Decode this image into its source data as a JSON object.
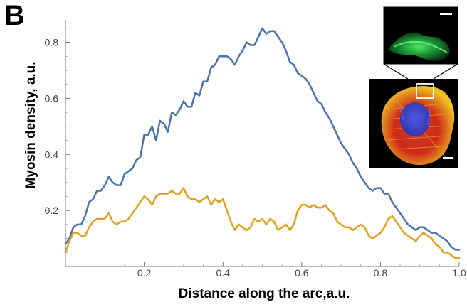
{
  "figure": {
    "panel_letter": "B"
  },
  "chart_data": {
    "type": "line",
    "xlabel": "Distance along the arc,a.u.",
    "ylabel": "Myosin density, a.u.",
    "xlim": [
      0,
      1.0
    ],
    "ylim": [
      0,
      0.88
    ],
    "xticks": [
      0.2,
      0.4,
      0.6,
      0.8,
      1.0
    ],
    "xtick_labels": [
      "0.2",
      "0.4",
      "0.6",
      "0.8",
      "1.0"
    ],
    "yticks": [
      0.2,
      0.4,
      0.6,
      0.8
    ],
    "ytick_labels": [
      "0.2",
      "0.4",
      "0.6",
      "0.8"
    ],
    "grid": false,
    "colors": {
      "blue_series": "#4a72b0",
      "orange_series": "#e0a020"
    },
    "series": [
      {
        "color": "#4a72b0",
        "x": [
          0.0,
          0.01,
          0.02,
          0.03,
          0.04,
          0.05,
          0.06,
          0.07,
          0.08,
          0.09,
          0.1,
          0.11,
          0.12,
          0.13,
          0.14,
          0.15,
          0.16,
          0.17,
          0.18,
          0.19,
          0.2,
          0.21,
          0.22,
          0.23,
          0.24,
          0.25,
          0.26,
          0.27,
          0.28,
          0.29,
          0.3,
          0.31,
          0.32,
          0.33,
          0.34,
          0.35,
          0.36,
          0.37,
          0.38,
          0.39,
          0.4,
          0.41,
          0.42,
          0.43,
          0.44,
          0.45,
          0.46,
          0.47,
          0.48,
          0.49,
          0.5,
          0.51,
          0.52,
          0.53,
          0.54,
          0.55,
          0.56,
          0.57,
          0.58,
          0.59,
          0.6,
          0.61,
          0.62,
          0.63,
          0.64,
          0.65,
          0.66,
          0.67,
          0.68,
          0.69,
          0.7,
          0.71,
          0.72,
          0.73,
          0.74,
          0.75,
          0.76,
          0.77,
          0.78,
          0.79,
          0.8,
          0.81,
          0.82,
          0.83,
          0.84,
          0.85,
          0.86,
          0.87,
          0.88,
          0.89,
          0.9,
          0.91,
          0.92,
          0.93,
          0.94,
          0.95,
          0.96,
          0.97,
          0.98,
          0.99,
          1.0
        ],
        "values": [
          0.08,
          0.1,
          0.14,
          0.15,
          0.15,
          0.18,
          0.23,
          0.24,
          0.27,
          0.27,
          0.29,
          0.32,
          0.3,
          0.29,
          0.29,
          0.33,
          0.34,
          0.35,
          0.38,
          0.39,
          0.47,
          0.47,
          0.5,
          0.45,
          0.52,
          0.51,
          0.48,
          0.55,
          0.54,
          0.56,
          0.59,
          0.57,
          0.57,
          0.62,
          0.61,
          0.66,
          0.66,
          0.71,
          0.72,
          0.75,
          0.75,
          0.75,
          0.74,
          0.72,
          0.75,
          0.77,
          0.8,
          0.79,
          0.79,
          0.82,
          0.85,
          0.83,
          0.84,
          0.84,
          0.82,
          0.8,
          0.77,
          0.73,
          0.72,
          0.69,
          0.68,
          0.67,
          0.65,
          0.62,
          0.59,
          0.58,
          0.55,
          0.53,
          0.5,
          0.47,
          0.44,
          0.42,
          0.4,
          0.37,
          0.35,
          0.32,
          0.3,
          0.28,
          0.27,
          0.28,
          0.28,
          0.26,
          0.26,
          0.23,
          0.21,
          0.19,
          0.17,
          0.15,
          0.14,
          0.13,
          0.14,
          0.14,
          0.13,
          0.12,
          0.12,
          0.11,
          0.1,
          0.09,
          0.07,
          0.06,
          0.06
        ]
      },
      {
        "color": "#e0a020",
        "x": [
          0.0,
          0.01,
          0.02,
          0.03,
          0.04,
          0.05,
          0.06,
          0.07,
          0.08,
          0.09,
          0.1,
          0.11,
          0.12,
          0.13,
          0.14,
          0.15,
          0.16,
          0.17,
          0.18,
          0.19,
          0.2,
          0.21,
          0.22,
          0.23,
          0.24,
          0.25,
          0.26,
          0.27,
          0.28,
          0.29,
          0.3,
          0.31,
          0.32,
          0.33,
          0.34,
          0.35,
          0.36,
          0.37,
          0.38,
          0.39,
          0.4,
          0.41,
          0.42,
          0.43,
          0.44,
          0.45,
          0.46,
          0.47,
          0.48,
          0.49,
          0.5,
          0.51,
          0.52,
          0.53,
          0.54,
          0.55,
          0.56,
          0.57,
          0.58,
          0.59,
          0.6,
          0.61,
          0.62,
          0.63,
          0.64,
          0.65,
          0.66,
          0.67,
          0.68,
          0.69,
          0.7,
          0.71,
          0.72,
          0.73,
          0.74,
          0.75,
          0.76,
          0.77,
          0.78,
          0.79,
          0.8,
          0.81,
          0.82,
          0.83,
          0.84,
          0.85,
          0.86,
          0.87,
          0.88,
          0.89,
          0.9,
          0.91,
          0.92,
          0.93,
          0.94,
          0.95,
          0.96,
          0.97,
          0.98,
          0.99,
          1.0
        ],
        "values": [
          0.05,
          0.09,
          0.12,
          0.12,
          0.11,
          0.11,
          0.14,
          0.16,
          0.17,
          0.17,
          0.17,
          0.19,
          0.16,
          0.15,
          0.16,
          0.16,
          0.17,
          0.19,
          0.21,
          0.23,
          0.25,
          0.24,
          0.22,
          0.25,
          0.26,
          0.26,
          0.26,
          0.27,
          0.26,
          0.26,
          0.28,
          0.25,
          0.24,
          0.24,
          0.23,
          0.24,
          0.25,
          0.22,
          0.24,
          0.23,
          0.24,
          0.2,
          0.16,
          0.13,
          0.15,
          0.14,
          0.13,
          0.14,
          0.17,
          0.16,
          0.17,
          0.15,
          0.17,
          0.16,
          0.13,
          0.14,
          0.15,
          0.13,
          0.15,
          0.2,
          0.22,
          0.22,
          0.21,
          0.22,
          0.21,
          0.21,
          0.22,
          0.2,
          0.19,
          0.16,
          0.15,
          0.14,
          0.14,
          0.13,
          0.14,
          0.15,
          0.14,
          0.11,
          0.1,
          0.11,
          0.12,
          0.14,
          0.17,
          0.18,
          0.16,
          0.14,
          0.12,
          0.11,
          0.1,
          0.09,
          0.11,
          0.12,
          0.11,
          0.1,
          0.08,
          0.07,
          0.05,
          0.05,
          0.04,
          0.03,
          0.03
        ]
      }
    ],
    "inset": {
      "main_scale_bar": true,
      "zoom_scale_bar": true,
      "roi_box": true,
      "zoom_panel_color": "#1ea83a",
      "cell_colors": [
        "#d82618",
        "#f0c020",
        "#3848d8"
      ]
    }
  }
}
